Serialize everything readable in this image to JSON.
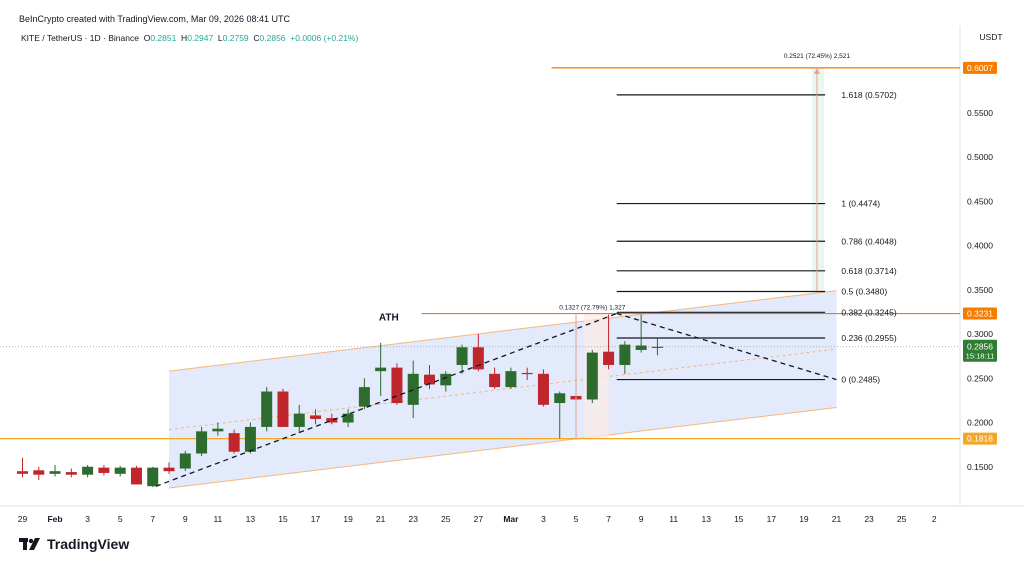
{
  "header": {
    "credit": "BeInCrypto created with TradingView.com, Mar 09, 2026 08:41 UTC",
    "symbol": "KITE / TetherUS · 1D · Binance",
    "o_label": "O",
    "o_val": "0.2851",
    "h_label": "H",
    "h_val": "0.2947",
    "l_label": "L",
    "l_val": "0.2759",
    "c_label": "C",
    "c_val": "0.2856",
    "change": "+0.0006 (+0.21%)"
  },
  "brand": {
    "name": "TradingView"
  },
  "chart_data": {
    "type": "candlestick",
    "currency_label": "USDT",
    "y_ticks": [
      0.15,
      0.2,
      0.25,
      0.3,
      0.35,
      0.4,
      0.45,
      0.5,
      0.55
    ],
    "y_tick_labels": [
      "0.1500",
      "0.2000",
      "0.2500",
      "0.3000",
      "0.3500",
      "0.4000",
      "0.4500",
      "0.5000",
      "0.5500"
    ],
    "ylim": [
      0.1,
      0.62
    ],
    "x_tick_labels": [
      "29",
      "Feb",
      "3",
      "5",
      "7",
      "9",
      "11",
      "13",
      "15",
      "17",
      "19",
      "21",
      "23",
      "25",
      "27",
      "Mar",
      "3",
      "5",
      "7",
      "9",
      "11",
      "13",
      "15",
      "17",
      "19",
      "21",
      "23",
      "25",
      "2"
    ],
    "candles": [
      {
        "o": 0.145,
        "h": 0.16,
        "l": 0.138,
        "c": 0.142
      },
      {
        "o": 0.146,
        "h": 0.15,
        "l": 0.135,
        "c": 0.141
      },
      {
        "o": 0.142,
        "h": 0.152,
        "l": 0.139,
        "c": 0.145
      },
      {
        "o": 0.144,
        "h": 0.148,
        "l": 0.138,
        "c": 0.141
      },
      {
        "o": 0.141,
        "h": 0.152,
        "l": 0.138,
        "c": 0.15
      },
      {
        "o": 0.149,
        "h": 0.152,
        "l": 0.14,
        "c": 0.143
      },
      {
        "o": 0.142,
        "h": 0.151,
        "l": 0.139,
        "c": 0.149
      },
      {
        "o": 0.149,
        "h": 0.151,
        "l": 0.13,
        "c": 0.13
      },
      {
        "o": 0.128,
        "h": 0.15,
        "l": 0.127,
        "c": 0.149
      },
      {
        "o": 0.149,
        "h": 0.155,
        "l": 0.142,
        "c": 0.145
      },
      {
        "o": 0.148,
        "h": 0.168,
        "l": 0.145,
        "c": 0.165
      },
      {
        "o": 0.165,
        "h": 0.195,
        "l": 0.162,
        "c": 0.19
      },
      {
        "o": 0.19,
        "h": 0.2,
        "l": 0.185,
        "c": 0.193
      },
      {
        "o": 0.188,
        "h": 0.192,
        "l": 0.165,
        "c": 0.167
      },
      {
        "o": 0.167,
        "h": 0.2,
        "l": 0.165,
        "c": 0.195
      },
      {
        "o": 0.195,
        "h": 0.24,
        "l": 0.19,
        "c": 0.235
      },
      {
        "o": 0.235,
        "h": 0.238,
        "l": 0.195,
        "c": 0.195
      },
      {
        "o": 0.195,
        "h": 0.22,
        "l": 0.188,
        "c": 0.21
      },
      {
        "o": 0.208,
        "h": 0.215,
        "l": 0.198,
        "c": 0.204
      },
      {
        "o": 0.205,
        "h": 0.21,
        "l": 0.198,
        "c": 0.2
      },
      {
        "o": 0.2,
        "h": 0.215,
        "l": 0.195,
        "c": 0.21
      },
      {
        "o": 0.218,
        "h": 0.25,
        "l": 0.215,
        "c": 0.24
      },
      {
        "o": 0.258,
        "h": 0.29,
        "l": 0.23,
        "c": 0.262
      },
      {
        "o": 0.262,
        "h": 0.267,
        "l": 0.22,
        "c": 0.222
      },
      {
        "o": 0.22,
        "h": 0.27,
        "l": 0.205,
        "c": 0.255
      },
      {
        "o": 0.254,
        "h": 0.265,
        "l": 0.238,
        "c": 0.243
      },
      {
        "o": 0.242,
        "h": 0.258,
        "l": 0.235,
        "c": 0.255
      },
      {
        "o": 0.265,
        "h": 0.288,
        "l": 0.255,
        "c": 0.285
      },
      {
        "o": 0.285,
        "h": 0.3,
        "l": 0.258,
        "c": 0.26
      },
      {
        "o": 0.255,
        "h": 0.262,
        "l": 0.238,
        "c": 0.24
      },
      {
        "o": 0.24,
        "h": 0.262,
        "l": 0.238,
        "c": 0.258
      },
      {
        "o": 0.256,
        "h": 0.262,
        "l": 0.248,
        "c": 0.255
      },
      {
        "o": 0.255,
        "h": 0.26,
        "l": 0.218,
        "c": 0.22
      },
      {
        "o": 0.222,
        "h": 0.235,
        "l": 0.182,
        "c": 0.233
      },
      {
        "o": 0.23,
        "h": 0.245,
        "l": 0.225,
        "c": 0.226
      },
      {
        "o": 0.226,
        "h": 0.282,
        "l": 0.222,
        "c": 0.279
      },
      {
        "o": 0.28,
        "h": 0.322,
        "l": 0.26,
        "c": 0.265
      },
      {
        "o": 0.265,
        "h": 0.292,
        "l": 0.255,
        "c": 0.288
      },
      {
        "o": 0.282,
        "h": 0.322,
        "l": 0.279,
        "c": 0.287
      },
      {
        "o": 0.2851,
        "h": 0.2947,
        "l": 0.2759,
        "c": 0.2856
      }
    ],
    "fib_levels": [
      {
        "label": "1.618 (0.5702)",
        "value": 0.5702
      },
      {
        "label": "1 (0.4474)",
        "value": 0.4474
      },
      {
        "label": "0.786 (0.4048)",
        "value": 0.4048
      },
      {
        "label": "0.618 (0.3714)",
        "value": 0.3714
      },
      {
        "label": "0.5 (0.3480)",
        "value": 0.348
      },
      {
        "label": "0.382 (0.3245)",
        "value": 0.3245
      },
      {
        "label": "0.236 (0.2955)",
        "value": 0.2955
      },
      {
        "label": "0 (0.2485)",
        "value": 0.2485
      }
    ],
    "horizontal_lines": [
      {
        "value": 0.6007,
        "label": "0.6007",
        "color": "#f57c00"
      },
      {
        "value": 0.3231,
        "label": "0.3231",
        "color": "#f57c00"
      },
      {
        "value": 0.1818,
        "label": "0.1818",
        "color": "#f5a623"
      }
    ],
    "current_price": {
      "label": "0.2856",
      "value": 0.2856,
      "countdown": "15:18:11",
      "color": "#2e7d32"
    },
    "channel": {
      "lower_start": 0.126,
      "lower_end": 0.217,
      "upper_start": 0.258,
      "upper_end": 0.349
    },
    "ath_label": "ATH",
    "measure_labels": {
      "swing": "0.1327 (72.79%) 1,327",
      "target": "0.2521 (72.45%) 2,521"
    },
    "colors": {
      "up": "#2e6b2f",
      "down": "#c0272d",
      "accent": "#f57c00",
      "support": "#f5a623",
      "channel": "#dfe8fb"
    }
  }
}
